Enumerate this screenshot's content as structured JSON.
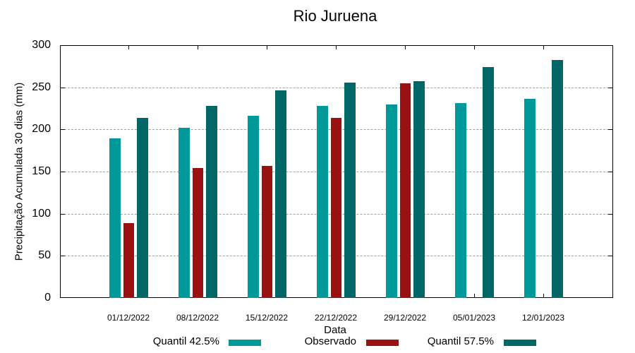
{
  "chart_data": {
    "type": "bar",
    "title": "Rio Juruena",
    "xlabel": "Data",
    "ylabel": "Precipitação Acumulada 30 dias (mm)",
    "ylim": [
      0,
      300
    ],
    "yticks": [
      0,
      50,
      100,
      150,
      200,
      250,
      300
    ],
    "grid": true,
    "legend_position": "bottom",
    "categories": [
      "01/12/2022",
      "08/12/2022",
      "15/12/2022",
      "22/12/2022",
      "29/12/2022",
      "05/01/2023",
      "12/01/2023"
    ],
    "series": [
      {
        "name": "Quantil 42.5%",
        "color": "#009999",
        "values": [
          189,
          202,
          216,
          228,
          230,
          231,
          236
        ]
      },
      {
        "name": "Observado",
        "color": "#991111",
        "values": [
          89,
          154,
          157,
          214,
          255,
          null,
          null
        ]
      },
      {
        "name": "Quantil 57.5%",
        "color": "#006666",
        "values": [
          214,
          228,
          246,
          256,
          257,
          274,
          282
        ]
      }
    ]
  }
}
